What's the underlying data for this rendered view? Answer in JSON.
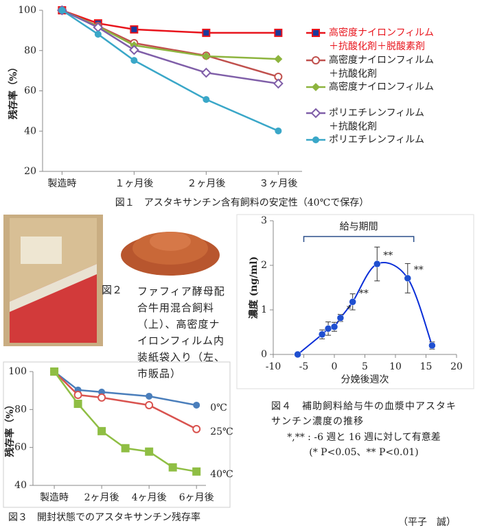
{
  "chart_data": [
    {
      "type": "line",
      "caption": "図１　アスタキサンチン含有飼料の安定性（40℃で保存）",
      "ylabel": "残存率（%）",
      "x": [
        0,
        0.5,
        1,
        2,
        3
      ],
      "xlim": [
        -0.27,
        3.33
      ],
      "xticks": [
        {
          "value": 0,
          "label": "製造時"
        },
        {
          "value": 1,
          "label": "１ヶ月後"
        },
        {
          "value": 2,
          "label": "２ヶ月後"
        },
        {
          "value": 3,
          "label": "３ヶ月後"
        }
      ],
      "ylim": [
        20,
        100
      ],
      "yticks": [
        20,
        40,
        60,
        80,
        100
      ],
      "series": [
        {
          "name": "高密度ナイロンフィルム\n＋抗酸化剤＋脱酸素剤",
          "color": "#e8141c",
          "label_color": "#e8141c",
          "marker": "square",
          "marker_fill": "#1a3a9c",
          "values": [
            100,
            93.5,
            90.5,
            88.8,
            88.8
          ]
        },
        {
          "name": "高密度ナイロンフィルム\n＋抗酸化剤",
          "color": "#c0504d",
          "marker": "circle-open",
          "values": [
            100,
            92.2,
            83.7,
            77.5,
            67
          ]
        },
        {
          "name": "高密度ナイロンフィルム",
          "color": "#8db43e",
          "marker": "diamond",
          "values": [
            100,
            92,
            82.6,
            77.2,
            75.8
          ]
        },
        {
          "name": "ポリエチレンフィルム\n＋抗酸化剤",
          "color": "#7f5ea8",
          "marker": "diamond-open",
          "values": [
            100,
            91.5,
            80.3,
            69,
            63.6
          ]
        },
        {
          "name": "ポリエチレンフィルム",
          "color": "#3aa7c8",
          "marker": "circle",
          "values": [
            100,
            88.1,
            75.1,
            55.7,
            40.1
          ]
        }
      ]
    },
    {
      "type": "scatter",
      "caption": "図４　補助飼料給与牛の血漿中アスタキサンチン濃度の推移",
      "notes": [
        "*,** : -6 週と 16 週に対して有意差",
        "(* P<0.05、** P<0.01)"
      ],
      "xlabel": "分娩後週次",
      "ylabel": "濃度 (ng/ml)",
      "color": "#1f4fd0",
      "x": [
        -6,
        -2,
        -1,
        0,
        1,
        3,
        7,
        12,
        16
      ],
      "values": [
        0,
        0.45,
        0.58,
        0.62,
        0.82,
        1.18,
        2.03,
        1.71,
        0.2
      ],
      "errors": [
        null,
        0.1,
        0.15,
        0.1,
        0.08,
        0.18,
        0.38,
        0.33,
        0.08
      ],
      "significance": [
        null,
        null,
        null,
        null,
        "*",
        "**",
        "**",
        "**",
        null
      ],
      "feeding_period": {
        "label": "給与期間",
        "x": [
          -5,
          13
        ]
      },
      "xlim": [
        -10,
        20
      ],
      "xticks": [
        -10,
        -5,
        0,
        5,
        10,
        15,
        20
      ],
      "ylim": [
        0,
        3
      ],
      "yticks": [
        0,
        1,
        2,
        3
      ]
    },
    {
      "type": "line",
      "caption": "図３　開封状態でのアスタキサンチン残存率",
      "ylabel": "残存率（%）",
      "xlim": [
        -0.9,
        6.4
      ],
      "xticks": [
        {
          "value": 0,
          "label": "製造時"
        },
        {
          "value": 2,
          "label": "2ヶ月後"
        },
        {
          "value": 4,
          "label": "4ヶ月後"
        },
        {
          "value": 6,
          "label": "6ヶ月後"
        }
      ],
      "ylim": [
        40,
        100
      ],
      "yticks": [
        40,
        60,
        80,
        100
      ],
      "series": [
        {
          "name": "0℃",
          "color": "#4a7ebb",
          "marker": "circle",
          "x": [
            0,
            1,
            2,
            4,
            6
          ],
          "values": [
            100,
            90.3,
            89.2,
            87,
            82.3
          ]
        },
        {
          "name": "25℃",
          "color": "#d9534f",
          "marker": "circle-open",
          "x": [
            0,
            1,
            2,
            4,
            6
          ],
          "values": [
            100,
            87.7,
            86.3,
            82.3,
            69.7
          ]
        },
        {
          "name": "40℃",
          "color": "#8fbe44",
          "marker": "square",
          "x": [
            0,
            1,
            2,
            3,
            4,
            5,
            6
          ],
          "values": [
            100,
            83,
            68.6,
            59.6,
            57.8,
            49.5,
            47.3
          ]
        }
      ]
    }
  ],
  "figure2": {
    "label": "図２",
    "caption": "ファフィア酵母配合牛用混合飼料（上）、高密度ナイロンフィルム内装紙袋入り（左、市販品）"
  },
  "author": "（平子　誠）"
}
